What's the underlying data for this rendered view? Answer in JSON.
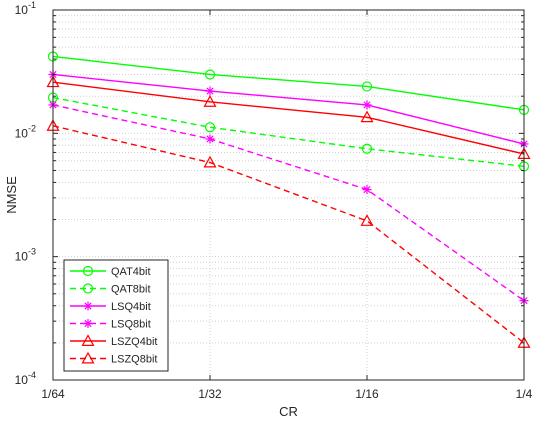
{
  "chart_data": {
    "type": "line",
    "title": "",
    "xlabel": "CR",
    "ylabel": "NMSE",
    "categories": [
      "1/64",
      "1/32",
      "1/16",
      "1/4"
    ],
    "y_scale": "log",
    "ylim": [
      0.0001,
      0.1
    ],
    "y_ticks": [
      {
        "value": 0.1,
        "base": "10",
        "exp": "-1"
      },
      {
        "value": 0.01,
        "base": "10",
        "exp": "-2"
      },
      {
        "value": 0.001,
        "base": "10",
        "exp": "-3"
      },
      {
        "value": 0.0001,
        "base": "10",
        "exp": "-4"
      }
    ],
    "grid": true,
    "legend_position": "bottom-left",
    "series": [
      {
        "name": "QAT4bit",
        "values": [
          0.042,
          0.03,
          0.024,
          0.0155
        ],
        "color": "#00ff00",
        "dash": "solid",
        "marker": "circle"
      },
      {
        "name": "QAT8bit",
        "values": [
          0.0195,
          0.0112,
          0.0075,
          0.0054
        ],
        "color": "#00ff00",
        "dash": "dashed",
        "marker": "circle"
      },
      {
        "name": "LSQ4bit",
        "values": [
          0.03,
          0.022,
          0.017,
          0.0082
        ],
        "color": "#ff00ff",
        "dash": "solid",
        "marker": "asterisk"
      },
      {
        "name": "LSQ8bit",
        "values": [
          0.017,
          0.009,
          0.0035,
          0.00044
        ],
        "color": "#ff00ff",
        "dash": "dashed",
        "marker": "asterisk"
      },
      {
        "name": "LSZQ4bit",
        "values": [
          0.026,
          0.018,
          0.0135,
          0.0068
        ],
        "color": "#ff0000",
        "dash": "solid",
        "marker": "triangle"
      },
      {
        "name": "LSZQ8bit",
        "values": [
          0.0115,
          0.0058,
          0.00195,
          0.0002
        ],
        "color": "#ff0000",
        "dash": "dashed",
        "marker": "triangle"
      }
    ]
  }
}
